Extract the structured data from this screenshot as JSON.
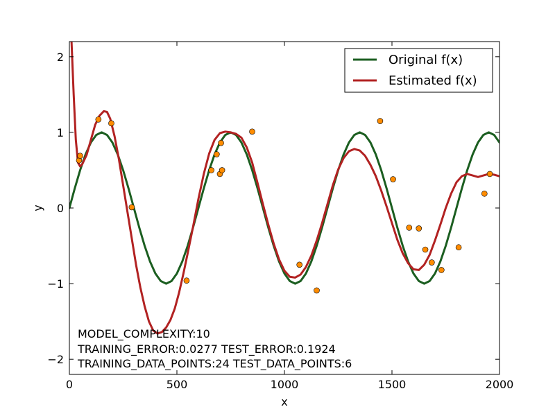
{
  "chart_data": {
    "type": "line",
    "title": "",
    "xlabel": "x",
    "ylabel": "y",
    "xlim": [
      0,
      2000
    ],
    "ylim": [
      -2.2,
      2.2
    ],
    "xticks": [
      0,
      500,
      1000,
      1500,
      2000
    ],
    "xtick_labels": [
      "0",
      "500",
      "1000",
      "1500",
      "2000"
    ],
    "yticks": [
      -2,
      -1,
      0,
      1,
      2
    ],
    "ytick_labels": [
      "−2",
      "−1",
      "0",
      "1",
      "2"
    ],
    "grid": false,
    "legend_position": "top-right",
    "series": [
      {
        "name": "Original f(x)",
        "color": "#1b5e20",
        "style": "line",
        "x": [
          0,
          25,
          50,
          75,
          100,
          125,
          150,
          175,
          200,
          225,
          250,
          275,
          300,
          325,
          350,
          375,
          400,
          425,
          450,
          475,
          500,
          525,
          550,
          575,
          600,
          625,
          650,
          675,
          700,
          725,
          750,
          775,
          800,
          825,
          850,
          875,
          900,
          925,
          950,
          975,
          1000,
          1025,
          1050,
          1075,
          1100,
          1125,
          1150,
          1175,
          1200,
          1225,
          1250,
          1275,
          1300,
          1325,
          1350,
          1375,
          1400,
          1425,
          1450,
          1475,
          1500,
          1525,
          1550,
          1575,
          1600,
          1625,
          1650,
          1675,
          1700,
          1725,
          1750,
          1775,
          1800,
          1825,
          1850,
          1875,
          1900,
          1925,
          1950,
          1975,
          2000
        ],
        "y": [
          0.0,
          0.259,
          0.5,
          0.707,
          0.866,
          0.966,
          1.0,
          0.966,
          0.866,
          0.707,
          0.5,
          0.259,
          0.0,
          -0.259,
          -0.5,
          -0.707,
          -0.866,
          -0.966,
          -1.0,
          -0.966,
          -0.866,
          -0.707,
          -0.5,
          -0.259,
          0.0,
          0.259,
          0.5,
          0.707,
          0.866,
          0.966,
          1.0,
          0.966,
          0.866,
          0.707,
          0.5,
          0.259,
          0.0,
          -0.259,
          -0.5,
          -0.707,
          -0.866,
          -0.966,
          -1.0,
          -0.966,
          -0.866,
          -0.707,
          -0.5,
          -0.259,
          0.0,
          0.259,
          0.5,
          0.707,
          0.866,
          0.966,
          1.0,
          0.966,
          0.866,
          0.707,
          0.5,
          0.259,
          0.0,
          -0.259,
          -0.5,
          -0.707,
          -0.866,
          -0.966,
          -1.0,
          -0.966,
          -0.866,
          -0.707,
          -0.5,
          -0.259,
          0.0,
          0.259,
          0.5,
          0.707,
          0.866,
          0.966,
          1.0,
          0.966,
          0.866
        ]
      },
      {
        "name": "Estimated f(x)",
        "color": "#b22222",
        "style": "line",
        "x": [
          10,
          20,
          30,
          40,
          50,
          60,
          80,
          100,
          120,
          140,
          160,
          175,
          190,
          210,
          230,
          250,
          270,
          290,
          310,
          330,
          350,
          370,
          390,
          410,
          430,
          450,
          470,
          490,
          510,
          530,
          550,
          575,
          600,
          625,
          650,
          675,
          700,
          725,
          750,
          775,
          800,
          825,
          850,
          875,
          900,
          925,
          950,
          975,
          1000,
          1025,
          1050,
          1075,
          1100,
          1125,
          1150,
          1175,
          1200,
          1225,
          1250,
          1275,
          1300,
          1325,
          1350,
          1375,
          1400,
          1425,
          1450,
          1475,
          1500,
          1525,
          1550,
          1575,
          1600,
          1625,
          1650,
          1675,
          1700,
          1725,
          1750,
          1775,
          1800,
          1825,
          1850,
          1875,
          1900,
          1925,
          1950,
          1975,
          2000
        ],
        "y": [
          2.2,
          1.5,
          0.9,
          0.6,
          0.55,
          0.58,
          0.7,
          0.9,
          1.1,
          1.22,
          1.28,
          1.27,
          1.18,
          0.95,
          0.65,
          0.3,
          -0.05,
          -0.4,
          -0.75,
          -1.05,
          -1.3,
          -1.5,
          -1.62,
          -1.66,
          -1.64,
          -1.58,
          -1.48,
          -1.33,
          -1.12,
          -0.87,
          -0.6,
          -0.25,
          0.12,
          0.45,
          0.72,
          0.9,
          0.99,
          1.01,
          1.0,
          0.98,
          0.93,
          0.8,
          0.6,
          0.33,
          0.05,
          -0.22,
          -0.47,
          -0.68,
          -0.83,
          -0.91,
          -0.92,
          -0.88,
          -0.78,
          -0.63,
          -0.43,
          -0.2,
          0.05,
          0.3,
          0.51,
          0.66,
          0.75,
          0.78,
          0.76,
          0.69,
          0.57,
          0.42,
          0.23,
          0.02,
          -0.2,
          -0.42,
          -0.6,
          -0.73,
          -0.81,
          -0.82,
          -0.75,
          -0.62,
          -0.43,
          -0.22,
          0.0,
          0.19,
          0.34,
          0.42,
          0.45,
          0.43,
          0.41,
          0.43,
          0.45,
          0.44,
          0.42
        ]
      },
      {
        "name": "",
        "color": "#ff8c00",
        "style": "points",
        "x": [
          45,
          50,
          135,
          195,
          290,
          545,
          660,
          685,
          700,
          705,
          710,
          850,
          1070,
          1150,
          1445,
          1505,
          1580,
          1625,
          1655,
          1685,
          1730,
          1810,
          1930,
          1955
        ],
        "y": [
          0.63,
          0.69,
          1.17,
          1.12,
          0.01,
          -0.96,
          0.5,
          0.71,
          0.45,
          0.86,
          0.5,
          1.01,
          -0.75,
          -1.09,
          1.15,
          0.38,
          -0.26,
          -0.27,
          -0.55,
          -0.72,
          -0.82,
          -0.52,
          0.19,
          0.45
        ]
      }
    ],
    "annotations": [
      "MODEL_COMPLEXITY:10",
      "TRAINING_ERROR:0.0277 TEST_ERROR:0.1924",
      "TRAINING_DATA_POINTS:24 TEST_DATA_POINTS:6"
    ]
  }
}
